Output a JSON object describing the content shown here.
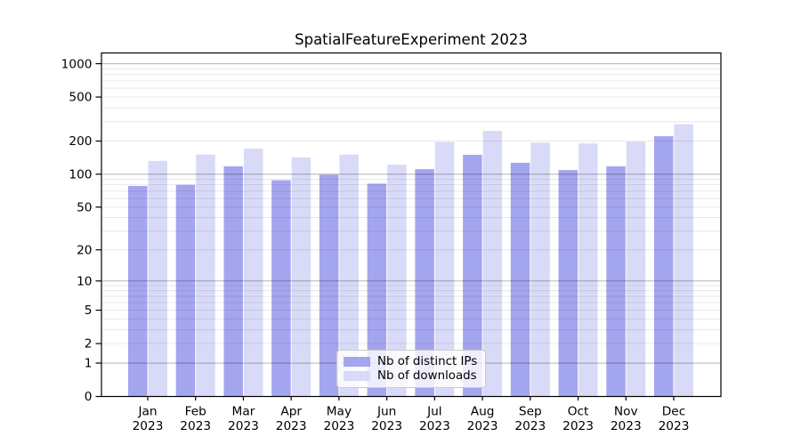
{
  "title": "SpatialFeatureExperiment 2023",
  "chart_data": {
    "type": "bar",
    "scale": "log1p",
    "title": "SpatialFeatureExperiment 2023",
    "categories": [
      "Jan 2023",
      "Feb 2023",
      "Mar 2023",
      "Apr 2023",
      "May 2023",
      "Jun 2023",
      "Jul 2023",
      "Aug 2023",
      "Sep 2023",
      "Oct 2023",
      "Nov 2023",
      "Dec 2023"
    ],
    "series": [
      {
        "name": "Nb of distinct IPs",
        "color": "#a4a5ef",
        "values": [
          78,
          80,
          118,
          88,
          99,
          82,
          111,
          150,
          127,
          109,
          118,
          221
        ]
      },
      {
        "name": "Nb of downloads",
        "color": "#d9daf8",
        "values": [
          132,
          151,
          171,
          142,
          151,
          122,
          196,
          247,
          193,
          190,
          197,
          284
        ]
      }
    ],
    "yticks": [
      0,
      1,
      2,
      5,
      10,
      20,
      50,
      100,
      200,
      500,
      1000
    ],
    "ytick_labels": [
      "0",
      "1",
      "2",
      "5",
      "10",
      "20",
      "50",
      "100",
      "200",
      "500",
      "1000"
    ],
    "ylim": [
      0,
      1250
    ],
    "xlabel": "",
    "ylabel": "",
    "grid": true,
    "grid_over_bars": true,
    "legend_position": "lower center"
  },
  "colors": {
    "major_grid": "rgba(0,0,0,0.30)",
    "minor_grid": "rgba(0,0,0,0.09)",
    "spine": "#000000"
  }
}
